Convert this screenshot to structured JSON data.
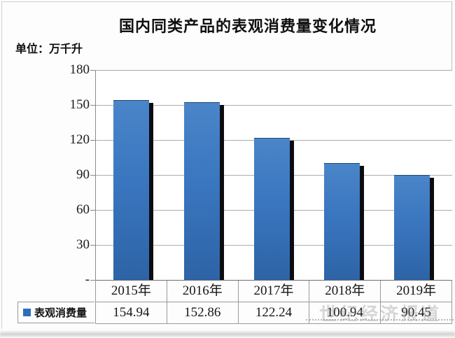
{
  "title": "国内同类产品的表观消费量变化情况",
  "unit_label": "单位：万千升",
  "chart_data": {
    "type": "bar",
    "title": "国内同类产品的表观消费量变化情况",
    "unit": "万千升",
    "categories": [
      "2015年",
      "2016年",
      "2017年",
      "2018年",
      "2019年"
    ],
    "series": [
      {
        "name": "表观消费量",
        "values": [
          154.94,
          152.86,
          122.24,
          100.94,
          90.45
        ]
      }
    ],
    "ylim": [
      0,
      180
    ],
    "ytick_interval": 30,
    "ytick_labels": [
      "180",
      "150",
      "120",
      "90",
      "60",
      "30",
      "-"
    ],
    "grid": true,
    "legend_position": "bottom-table",
    "bar_color": "#3a76bf",
    "bar_shadow_color": "#0c0c10"
  },
  "table": {
    "header_row": [
      "2015年",
      "2016年",
      "2017年",
      "2018年",
      "2019年"
    ],
    "legend_label": "表观消费量",
    "legend_marker_color": "#2f6db8",
    "values_row": [
      "154.94",
      "152.86",
      "122.24",
      "100.94",
      "90.45"
    ]
  },
  "watermark": {
    "text": "世纪经济报道"
  }
}
